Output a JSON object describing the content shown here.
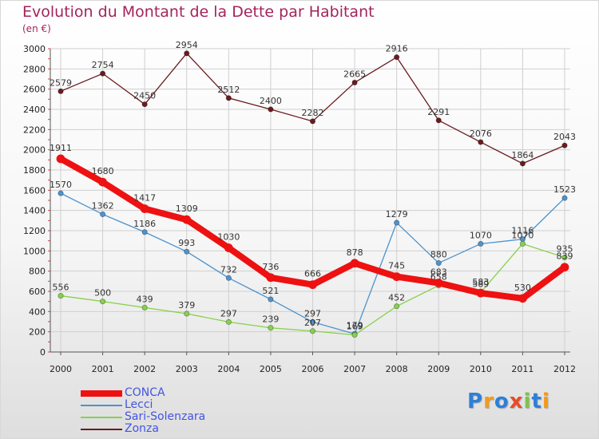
{
  "chart_data": {
    "type": "line",
    "title": "Evolution du Montant de la Dette par Habitant",
    "subtitle": "(en €)",
    "xlabel": "",
    "ylabel": "",
    "ylim": [
      0,
      3000
    ],
    "yticks": [
      0,
      200,
      400,
      600,
      800,
      1000,
      1200,
      1400,
      1600,
      1800,
      2000,
      2200,
      2400,
      2600,
      2800,
      3000
    ],
    "grid": true,
    "legend_position": "bottom-left",
    "x": [
      "2000",
      "2001",
      "2002",
      "2003",
      "2004",
      "2005",
      "2006",
      "2007",
      "2008",
      "2009",
      "2010",
      "2011",
      "2012"
    ],
    "series": [
      {
        "name": "Zonza",
        "color": "#6a1b20",
        "values": [
          2579,
          2754,
          2450,
          2954,
          2512,
          2400,
          2282,
          2665,
          2916,
          2291,
          2076,
          1864,
          2043
        ]
      },
      {
        "name": "Lecci",
        "color": "#4d93cc",
        "values": [
          1570,
          1362,
          1186,
          993,
          732,
          521,
          297,
          179,
          1279,
          880,
          1070,
          1116,
          1523
        ]
      },
      {
        "name": "Sari-Solenzara",
        "color": "#86d14a",
        "values": [
          556,
          500,
          439,
          379,
          297,
          239,
          207,
          169,
          452,
          658,
          589,
          1070,
          935
        ]
      },
      {
        "name": "CONCA",
        "color": "#ee1111",
        "values": [
          1911,
          1680,
          1417,
          1309,
          1030,
          736,
          666,
          878,
          745,
          683,
          583,
          530,
          839
        ]
      }
    ]
  },
  "legend": [
    {
      "label": "CONCA",
      "color": "#ee1111"
    },
    {
      "label": "Lecci",
      "color": "#4d93cc"
    },
    {
      "label": "Sari-Solenzara",
      "color": "#86d14a"
    },
    {
      "label": "Zonza",
      "color": "#6a1b20"
    }
  ],
  "logo": {
    "text": "Proxiti"
  }
}
